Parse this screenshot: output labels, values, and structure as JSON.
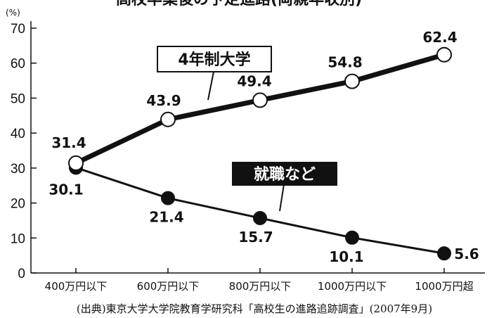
{
  "chart_data": {
    "type": "line",
    "title": "高校卒業後の予定進路(両親年収別)",
    "unit_label": "(%)",
    "ylim": [
      0,
      70
    ],
    "yticks": [
      0,
      10,
      20,
      30,
      40,
      50,
      60,
      70
    ],
    "categories": [
      "400万円以下",
      "600万円以下",
      "800万円以下",
      "1000万円以下",
      "1000万円超"
    ],
    "series": [
      {
        "name": "4年制大学",
        "values": [
          31.4,
          43.9,
          49.4,
          54.8,
          62.4
        ],
        "marker": "open",
        "labels": [
          "31.4",
          "43.9",
          "49.4",
          "54.8",
          "62.4"
        ]
      },
      {
        "name": "就職など",
        "values": [
          30.1,
          21.4,
          15.7,
          10.1,
          5.6
        ],
        "marker": "filled",
        "labels": [
          "30.1",
          "21.4",
          "15.7",
          "10.1",
          "5.6"
        ]
      }
    ],
    "source": "(出典)東京大学大学院教育学研究科「高校生の進路追跡調査」(2007年9月)"
  }
}
